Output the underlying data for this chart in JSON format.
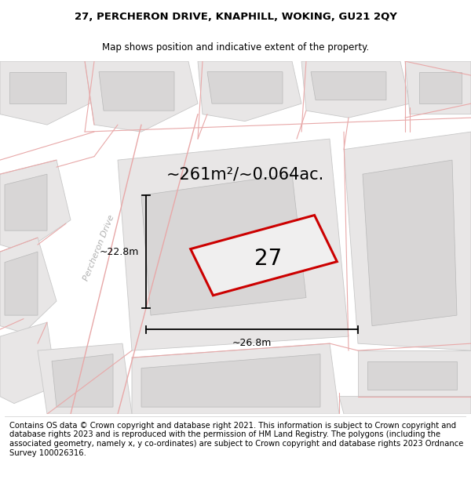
{
  "title": "27, PERCHERON DRIVE, KNAPHILL, WOKING, GU21 2QY",
  "subtitle": "Map shows position and indicative extent of the property.",
  "area_text": "~261m²/~0.064ac.",
  "plot_number": "27",
  "dim_width": "~26.8m",
  "dim_height": "~22.8m",
  "road_label": "Percheron Drive",
  "footer": "Contains OS data © Crown copyright and database right 2021. This information is subject to Crown copyright and database rights 2023 and is reproduced with the permission of HM Land Registry. The polygons (including the associated geometry, namely x, y co-ordinates) are subject to Crown copyright and database rights 2023 Ordnance Survey 100026316.",
  "map_bg": "#ffffff",
  "plot_fill": "#f0efef",
  "plot_edge": "#cc0000",
  "building_fill": "#d8d6d6",
  "block_fill": "#e8e6e6",
  "road_line_color": "#e8a8a8",
  "title_fontsize": 9.5,
  "subtitle_fontsize": 8.5,
  "area_fontsize": 15,
  "plot_num_fontsize": 20,
  "footer_fontsize": 7.2,
  "road_label_color": "#b0b0b0",
  "road_label_fontsize": 8
}
